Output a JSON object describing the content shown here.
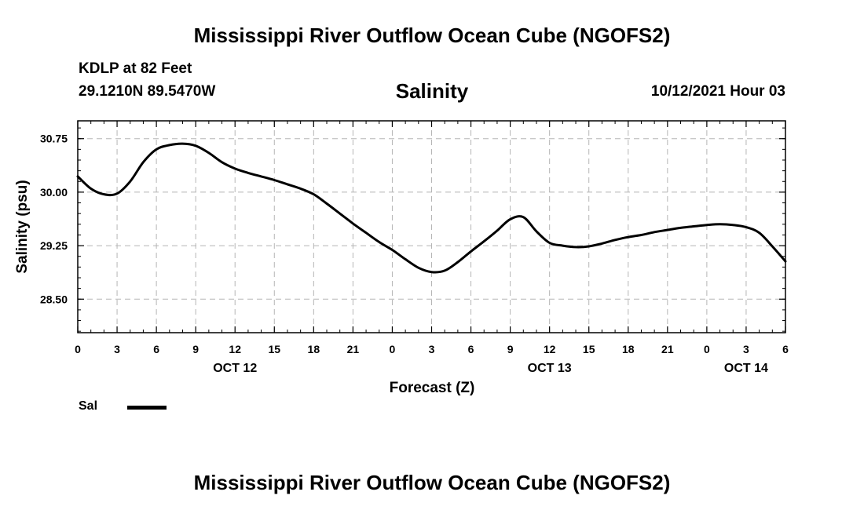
{
  "header": {
    "title": "Mississippi River Outflow Ocean Cube (NGOFS2)",
    "station": "KDLP at 82 Feet",
    "coordinates": "29.1210N  89.5470W",
    "variable": "Salinity",
    "datetime": "10/12/2021 Hour 03"
  },
  "footer": {
    "title": "Mississippi River Outflow Ocean Cube (NGOFS2)"
  },
  "legend": {
    "label": "Sal",
    "color": "#000000"
  },
  "chart_data": {
    "type": "line",
    "title": "Salinity",
    "xlabel": "Forecast (Z)",
    "ylabel": "Salinity (psu)",
    "xlim": [
      0,
      54
    ],
    "ylim": [
      28.03,
      31.0
    ],
    "yticks": [
      28.5,
      29.25,
      30.0,
      30.75
    ],
    "ytick_labels": [
      "28.50",
      "29.25",
      "30.00",
      "30.75"
    ],
    "xticks": [
      0,
      3,
      6,
      9,
      12,
      15,
      18,
      21,
      24,
      27,
      30,
      33,
      36,
      39,
      42,
      45,
      48,
      51,
      54
    ],
    "xtick_labels": [
      "0",
      "3",
      "6",
      "9",
      "12",
      "15",
      "18",
      "21",
      "0",
      "3",
      "6",
      "9",
      "12",
      "15",
      "18",
      "21",
      "0",
      "3",
      "6"
    ],
    "date_labels": [
      {
        "x": 12,
        "label": "OCT 12"
      },
      {
        "x": 36,
        "label": "OCT 13"
      },
      {
        "x": 51,
        "label": "OCT 14"
      }
    ],
    "grid": true,
    "series": [
      {
        "name": "Sal",
        "color": "#000000",
        "x": [
          0,
          1,
          2,
          3,
          4,
          5,
          6,
          7,
          8,
          9,
          10,
          11,
          12,
          13,
          14,
          15,
          16,
          17,
          18,
          19,
          20,
          21,
          22,
          23,
          24,
          25,
          26,
          27,
          28,
          29,
          30,
          31,
          32,
          33,
          34,
          35,
          36,
          37,
          38,
          39,
          40,
          41,
          42,
          43,
          44,
          45,
          46,
          47,
          48,
          49,
          50,
          51,
          52,
          53,
          54
        ],
        "values": [
          30.22,
          30.05,
          29.97,
          29.98,
          30.15,
          30.42,
          30.6,
          30.66,
          30.68,
          30.65,
          30.55,
          30.42,
          30.33,
          30.27,
          30.22,
          30.17,
          30.11,
          30.05,
          29.97,
          29.84,
          29.7,
          29.56,
          29.43,
          29.3,
          29.19,
          29.06,
          28.94,
          28.88,
          28.9,
          29.02,
          29.17,
          29.31,
          29.46,
          29.62,
          29.65,
          29.45,
          29.29,
          29.25,
          29.23,
          29.24,
          29.28,
          29.33,
          29.37,
          29.4,
          29.44,
          29.47,
          29.5,
          29.52,
          29.54,
          29.55,
          29.54,
          29.51,
          29.43,
          29.24,
          29.03
        ]
      }
    ]
  }
}
